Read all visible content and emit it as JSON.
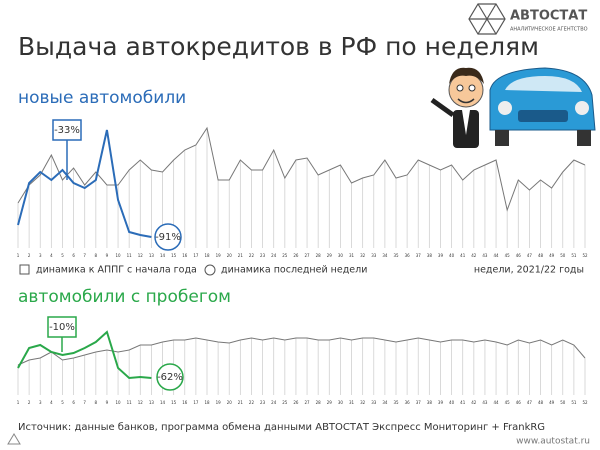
{
  "logo": {
    "name": "АВТОСТАТ",
    "tagline": "АНАЛИТИЧЕСКОЕ АГЕНТСТВО"
  },
  "title": "Выдача автокредитов в РФ по неделям",
  "legend": {
    "items": [
      "динамика к АППГ с начала года",
      "динамика последней недели"
    ]
  },
  "source": "Источник: данные банков, программа обмена данными АВТОСТАТ Экспресс Мониторинг + FrankRG",
  "url": "www.autostat.ru",
  "chart_data": [
    {
      "type": "line",
      "subtitle": "новые автомобили",
      "xlabel": "недели, 2021/22 годы",
      "categories": [
        1,
        2,
        3,
        4,
        5,
        6,
        7,
        8,
        9,
        10,
        11,
        12,
        13,
        14,
        15,
        16,
        17,
        18,
        19,
        20,
        21,
        22,
        23,
        24,
        25,
        26,
        27,
        28,
        29,
        30,
        31,
        32,
        33,
        34,
        35,
        36,
        37,
        38,
        39,
        40,
        41,
        42,
        43,
        44,
        45,
        46,
        47,
        48,
        49,
        50,
        51,
        52
      ],
      "series": [
        {
          "color": "#777777",
          "values": [
            45,
            63,
            73,
            93,
            68,
            80,
            63,
            76,
            63,
            63,
            78,
            88,
            78,
            76,
            88,
            98,
            103,
            120,
            68,
            68,
            88,
            78,
            78,
            98,
            70,
            88,
            90,
            73,
            78,
            83,
            65,
            70,
            73,
            88,
            70,
            73,
            88,
            83,
            78,
            83,
            68,
            78,
            83,
            88,
            38,
            68,
            58,
            68,
            60,
            76,
            88,
            83
          ]
        },
        {
          "color": "#2b6cb8",
          "values": [
            23,
            65,
            76,
            68,
            78,
            65,
            60,
            68,
            118,
            48,
            16,
            13,
            11,
            null,
            null,
            null,
            null,
            null,
            null,
            null,
            null,
            null,
            null,
            null,
            null,
            null,
            null,
            null,
            null,
            null,
            null,
            null,
            null,
            null,
            null,
            null,
            null,
            null,
            null,
            null,
            null,
            null,
            null,
            null,
            null,
            null,
            null,
            null,
            null,
            null,
            null,
            null
          ]
        }
      ],
      "annotations": [
        "-33%",
        "-91%"
      ]
    },
    {
      "type": "line",
      "subtitle": "автомобили с пробегом",
      "categories": [
        1,
        2,
        3,
        4,
        5,
        6,
        7,
        8,
        9,
        10,
        11,
        12,
        13,
        14,
        15,
        16,
        17,
        18,
        19,
        20,
        21,
        22,
        23,
        24,
        25,
        26,
        27,
        28,
        29,
        30,
        31,
        32,
        33,
        34,
        35,
        36,
        37,
        38,
        39,
        40,
        41,
        42,
        43,
        44,
        45,
        46,
        47,
        48,
        49,
        50,
        51,
        52
      ],
      "series": [
        {
          "color": "#777777",
          "values": [
            30,
            35,
            37,
            43,
            35,
            37,
            40,
            43,
            45,
            43,
            45,
            50,
            50,
            53,
            55,
            55,
            57,
            55,
            53,
            52,
            55,
            57,
            55,
            57,
            55,
            57,
            57,
            55,
            55,
            57,
            55,
            57,
            57,
            55,
            53,
            55,
            57,
            55,
            53,
            55,
            55,
            53,
            55,
            53,
            50,
            55,
            52,
            55,
            50,
            55,
            50,
            37
          ]
        },
        {
          "color": "#2aa84a",
          "values": [
            27,
            47,
            50,
            43,
            40,
            42,
            47,
            53,
            63,
            27,
            17,
            18,
            17,
            null,
            null,
            null,
            null,
            null,
            null,
            null,
            null,
            null,
            null,
            null,
            null,
            null,
            null,
            null,
            null,
            null,
            null,
            null,
            null,
            null,
            null,
            null,
            null,
            null,
            null,
            null,
            null,
            null,
            null,
            null,
            null,
            null,
            null,
            null,
            null,
            null,
            null,
            null
          ]
        }
      ],
      "annotations": [
        "-10%",
        "-62%"
      ]
    }
  ]
}
